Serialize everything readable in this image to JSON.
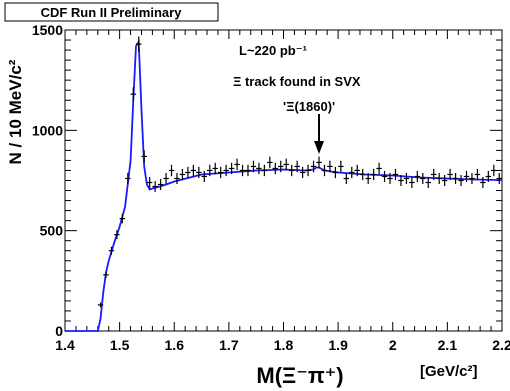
{
  "chart_data": {
    "type": "scatter",
    "banner": "CDF Run II Preliminary",
    "ylabel": "N / 10 MeV/c²",
    "xlabel": "M(Ξ⁻π⁺)",
    "x_unit": "[GeV/c²]",
    "xlim": [
      1.4,
      2.2
    ],
    "ylim": [
      0,
      1500
    ],
    "x_tick_labels": [
      "1.4",
      "1.5",
      "1.6",
      "1.7",
      "1.8",
      "1.9",
      "2",
      "2.1",
      "2.2"
    ],
    "y_tick_labels": [
      "0",
      "500",
      "1000",
      "1500"
    ],
    "annotations": {
      "luminosity": "L~220 pb⁻¹",
      "track_note": "Ξ track found in SVX",
      "resonance": "'Ξ(1860)'"
    },
    "arrow_x": 1.865,
    "series": [
      {
        "kind": "data",
        "x": [
          1.465,
          1.475,
          1.485,
          1.495,
          1.505,
          1.515,
          1.525,
          1.535,
          1.545,
          1.555,
          1.565,
          1.575,
          1.585,
          1.595,
          1.605,
          1.615,
          1.625,
          1.635,
          1.645,
          1.655,
          1.665,
          1.675,
          1.685,
          1.695,
          1.705,
          1.715,
          1.725,
          1.735,
          1.745,
          1.755,
          1.765,
          1.775,
          1.785,
          1.795,
          1.805,
          1.815,
          1.825,
          1.835,
          1.845,
          1.855,
          1.865,
          1.875,
          1.885,
          1.895,
          1.905,
          1.915,
          1.925,
          1.935,
          1.945,
          1.955,
          1.965,
          1.975,
          1.985,
          1.995,
          2.005,
          2.015,
          2.025,
          2.035,
          2.045,
          2.055,
          2.065,
          2.075,
          2.085,
          2.095,
          2.105,
          2.115,
          2.125,
          2.135,
          2.145,
          2.155,
          2.165,
          2.175,
          2.185,
          2.195
        ],
        "y": [
          130,
          280,
          400,
          480,
          560,
          760,
          1180,
          1430,
          870,
          740,
          720,
          730,
          760,
          800,
          760,
          780,
          790,
          800,
          790,
          770,
          800,
          810,
          790,
          800,
          810,
          830,
          800,
          800,
          820,
          810,
          800,
          840,
          810,
          820,
          830,
          800,
          820,
          790,
          800,
          820,
          840,
          800,
          820,
          790,
          820,
          760,
          790,
          800,
          780,
          760,
          780,
          810,
          770,
          760,
          780,
          750,
          760,
          740,
          770,
          760,
          740,
          780,
          760,
          750,
          780,
          760,
          750,
          770,
          760,
          780,
          740,
          770,
          800,
          760
        ]
      },
      {
        "kind": "fit",
        "x": [
          1.4,
          1.46,
          1.465,
          1.47,
          1.475,
          1.48,
          1.49,
          1.5,
          1.51,
          1.52,
          1.525,
          1.53,
          1.535,
          1.54,
          1.545,
          1.55,
          1.555,
          1.56,
          1.58,
          1.6,
          1.65,
          1.7,
          1.75,
          1.8,
          1.84,
          1.855,
          1.86,
          1.865,
          1.875,
          1.9,
          1.95,
          2.0,
          2.05,
          2.1,
          2.15,
          2.2
        ],
        "y": [
          0,
          0,
          60,
          190,
          290,
          350,
          440,
          520,
          620,
          850,
          1150,
          1420,
          1440,
          1100,
          820,
          730,
          705,
          710,
          725,
          745,
          780,
          790,
          800,
          805,
          800,
          805,
          815,
          815,
          800,
          790,
          780,
          775,
          765,
          760,
          755,
          752
        ]
      }
    ]
  }
}
